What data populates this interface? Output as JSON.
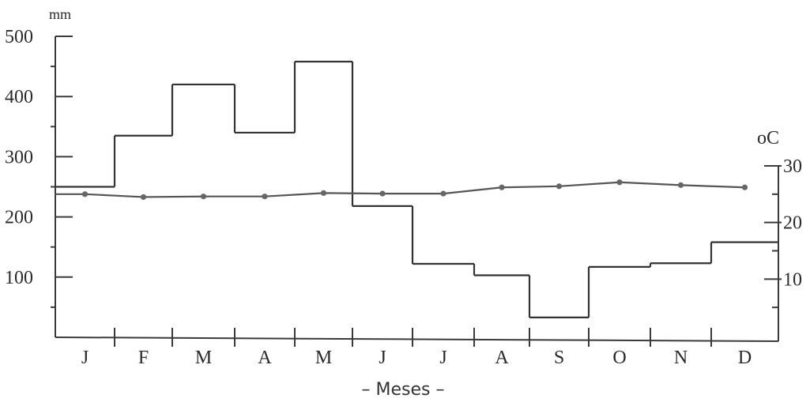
{
  "chart_data": {
    "type": "climate-diagram",
    "xlabel": "– Meses –",
    "categories": [
      "J",
      "F",
      "M",
      "A",
      "M",
      "J",
      "J",
      "A",
      "S",
      "O",
      "N",
      "D"
    ],
    "precipitation": {
      "unit": "mm",
      "type": "bar",
      "ylim": [
        0,
        500
      ],
      "ticks": [
        100,
        200,
        300,
        400,
        500
      ],
      "values": [
        250,
        335,
        420,
        340,
        458,
        218,
        122,
        103,
        33,
        117,
        123,
        158
      ]
    },
    "temperature": {
      "unit": "oC",
      "type": "line",
      "ylim": [
        0,
        30
      ],
      "ticks": [
        10,
        20,
        30
      ],
      "values": [
        25,
        24.5,
        24.6,
        24.6,
        25.2,
        25.1,
        25.1,
        26.2,
        26.4,
        27.1,
        26.6,
        26.2
      ]
    }
  }
}
